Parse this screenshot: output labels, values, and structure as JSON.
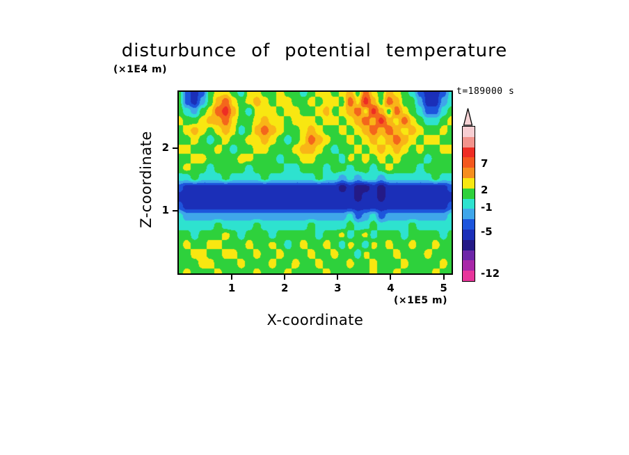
{
  "title": "disturbunce of potential temperature",
  "time_label": "t=189000 s",
  "axes": {
    "x_label": "X-coordinate",
    "x_unit": "(×1E5 m)",
    "y_label": "Z-coordinate",
    "y_unit": "(×1E4 m)"
  },
  "frame_color": "#000000",
  "colorbar": {
    "segments": [
      "#f7ced2",
      "#f2938c",
      "#ee2d24",
      "#f4581e",
      "#f68e1e",
      "#f8e711",
      "#2ed13c",
      "#2ee2cf",
      "#3fa6ea",
      "#1d55dc",
      "#1b2fb8",
      "#241a86",
      "#6d26a8",
      "#a827a8",
      "#e8359b"
    ],
    "arrow_fill": "#f6d3d5",
    "labels": [
      {
        "text": "7",
        "y": 54
      },
      {
        "text": "2",
        "y": 92
      },
      {
        "text": "-1",
        "y": 117
      },
      {
        "text": "-5",
        "y": 152
      },
      {
        "text": "-12",
        "y": 212
      }
    ]
  },
  "chart_data": {
    "type": "heatmap",
    "title": "disturbunce of potential temperature",
    "xlabel": "X-coordinate (×1E5 m)",
    "ylabel": "Z-coordinate (×1E4 m)",
    "time_label": "t=189000 s",
    "x_range": [
      0,
      5.15
    ],
    "y_range": [
      0,
      2.9
    ],
    "x_ticks": [
      1,
      2,
      3,
      4,
      5
    ],
    "y_ticks": [
      1,
      2
    ],
    "levels": [
      -9,
      -7,
      -5,
      -3,
      -1,
      1,
      2.5,
      3.5,
      5,
      7
    ],
    "palette": [
      "#cf1f8e",
      "#241a86",
      "#1b2fb8",
      "#1d55dc",
      "#3fa6ea",
      "#2ee2cf",
      "#2ed13c",
      "#f8e711",
      "#f9b517",
      "#f4661c",
      "#ee2d24"
    ],
    "orientation": "row0_top",
    "grid": [
      [
        2,
        -4,
        -6,
        -4,
        2,
        3,
        3,
        2,
        0,
        3,
        3,
        2,
        2,
        3,
        2,
        2,
        0,
        2,
        3,
        3,
        2,
        3,
        4,
        2,
        6,
        3,
        2,
        4,
        3,
        2,
        0,
        -4,
        -6,
        -6,
        -4,
        0
      ],
      [
        2,
        -4,
        -6,
        -2,
        2,
        4,
        6,
        3,
        2,
        3,
        4,
        3,
        2,
        3,
        3,
        2,
        2,
        3,
        2,
        3,
        3,
        2,
        6,
        3,
        8,
        4,
        2,
        6,
        4,
        2,
        2,
        -2,
        -6,
        -6,
        -2,
        0
      ],
      [
        2,
        0,
        -2,
        2,
        3,
        6,
        8,
        4,
        2,
        0,
        3,
        3,
        3,
        2,
        3,
        3,
        2,
        2,
        3,
        4,
        2,
        3,
        4,
        6,
        3,
        8,
        4,
        2,
        6,
        3,
        2,
        0,
        -4,
        -4,
        0,
        2
      ],
      [
        3,
        2,
        2,
        3,
        4,
        4,
        6,
        3,
        2,
        2,
        3,
        4,
        3,
        3,
        2,
        3,
        3,
        3,
        2,
        3,
        3,
        2,
        3,
        4,
        6,
        4,
        8,
        4,
        3,
        6,
        3,
        2,
        0,
        0,
        2,
        3
      ],
      [
        2,
        3,
        4,
        3,
        2,
        3,
        4,
        3,
        0,
        2,
        4,
        6,
        4,
        3,
        2,
        2,
        3,
        4,
        3,
        2,
        2,
        3,
        2,
        3,
        4,
        6,
        4,
        6,
        4,
        3,
        4,
        3,
        2,
        2,
        3,
        2
      ],
      [
        2,
        2,
        3,
        2,
        0,
        2,
        3,
        2,
        2,
        3,
        3,
        4,
        3,
        2,
        0,
        2,
        3,
        6,
        4,
        3,
        2,
        2,
        3,
        2,
        3,
        4,
        3,
        4,
        6,
        4,
        3,
        2,
        3,
        3,
        2,
        2
      ],
      [
        3,
        3,
        2,
        2,
        2,
        3,
        2,
        0,
        2,
        2,
        3,
        3,
        2,
        2,
        2,
        3,
        4,
        4,
        3,
        2,
        0,
        2,
        2,
        3,
        2,
        3,
        4,
        3,
        4,
        3,
        2,
        3,
        2,
        2,
        3,
        3
      ],
      [
        2,
        2,
        3,
        3,
        2,
        2,
        2,
        2,
        3,
        3,
        2,
        2,
        2,
        0,
        2,
        2,
        3,
        3,
        2,
        2,
        2,
        0,
        3,
        2,
        3,
        2,
        3,
        2,
        3,
        2,
        2,
        2,
        0,
        2,
        2,
        2
      ],
      [
        2,
        3,
        2,
        2,
        0,
        2,
        2,
        2,
        2,
        0,
        2,
        2,
        2,
        2,
        0,
        0,
        2,
        2,
        2,
        0,
        2,
        2,
        0,
        2,
        2,
        0,
        2,
        3,
        2,
        2,
        2,
        0,
        2,
        2,
        2,
        2
      ],
      [
        0,
        0,
        2,
        0,
        0,
        0,
        2,
        0,
        0,
        0,
        0,
        2,
        0,
        0,
        0,
        0,
        0,
        0,
        2,
        0,
        0,
        -2,
        0,
        -2,
        0,
        0,
        -2,
        0,
        0,
        0,
        0,
        0,
        0,
        2,
        0,
        0
      ],
      [
        -4,
        -6,
        -6,
        -6,
        -6,
        -6,
        -6,
        -6,
        -6,
        -6,
        -6,
        -6,
        -6,
        -6,
        -6,
        -6,
        -6,
        -6,
        -6,
        -6,
        -6,
        -8,
        -6,
        -8,
        -8,
        -6,
        -8,
        -6,
        -6,
        -6,
        -6,
        -6,
        -6,
        -6,
        -6,
        -4
      ],
      [
        -6,
        -6,
        -6,
        -6,
        -6,
        -6,
        -6,
        -6,
        -6,
        -6,
        -6,
        -6,
        -6,
        -6,
        -6,
        -6,
        -6,
        -6,
        -6,
        -6,
        -6,
        -6,
        -6,
        -8,
        -6,
        -6,
        -8,
        -6,
        -6,
        -6,
        -6,
        -6,
        -6,
        -6,
        -6,
        -6
      ],
      [
        -4,
        -6,
        -6,
        -6,
        -6,
        -6,
        -6,
        -6,
        -6,
        -6,
        -6,
        -6,
        -6,
        -6,
        -6,
        -6,
        -6,
        -6,
        -6,
        -6,
        -6,
        -6,
        -6,
        -6,
        -6,
        -6,
        -6,
        -6,
        -6,
        -6,
        -6,
        -6,
        -6,
        -6,
        -6,
        -4
      ],
      [
        0,
        -2,
        -2,
        -2,
        -2,
        -2,
        -2,
        -2,
        -2,
        -2,
        -2,
        -2,
        -2,
        -2,
        -2,
        -2,
        -2,
        -2,
        -2,
        -2,
        -2,
        -2,
        0,
        -4,
        -2,
        0,
        -4,
        -2,
        -2,
        -2,
        -2,
        -2,
        -2,
        -2,
        -2,
        0
      ],
      [
        0,
        0,
        0,
        0,
        0,
        2,
        0,
        0,
        0,
        0,
        2,
        0,
        0,
        0,
        0,
        0,
        0,
        2,
        0,
        0,
        0,
        0,
        2,
        0,
        0,
        2,
        0,
        0,
        0,
        0,
        2,
        0,
        0,
        0,
        0,
        0
      ],
      [
        2,
        2,
        0,
        2,
        2,
        2,
        3,
        2,
        0,
        2,
        2,
        2,
        0,
        2,
        2,
        2,
        2,
        2,
        0,
        2,
        2,
        3,
        0,
        2,
        3,
        0,
        2,
        2,
        2,
        0,
        2,
        2,
        2,
        2,
        0,
        2
      ],
      [
        2,
        3,
        2,
        2,
        3,
        3,
        2,
        2,
        2,
        3,
        2,
        2,
        3,
        2,
        0,
        2,
        3,
        2,
        2,
        3,
        2,
        0,
        3,
        2,
        0,
        3,
        2,
        3,
        2,
        2,
        3,
        2,
        2,
        3,
        2,
        2
      ],
      [
        2,
        2,
        3,
        3,
        2,
        2,
        3,
        3,
        2,
        2,
        3,
        2,
        2,
        3,
        2,
        2,
        2,
        3,
        2,
        2,
        3,
        2,
        2,
        0,
        3,
        2,
        2,
        2,
        3,
        2,
        2,
        2,
        3,
        2,
        2,
        2
      ],
      [
        2,
        2,
        2,
        3,
        3,
        2,
        2,
        2,
        3,
        2,
        2,
        2,
        3,
        2,
        2,
        3,
        2,
        2,
        3,
        2,
        2,
        2,
        3,
        2,
        2,
        3,
        2,
        2,
        2,
        3,
        2,
        2,
        2,
        2,
        3,
        2
      ],
      [
        2,
        3,
        2,
        2,
        2,
        3,
        2,
        2,
        2,
        2,
        3,
        2,
        2,
        2,
        3,
        2,
        2,
        2,
        2,
        3,
        2,
        2,
        2,
        2,
        2,
        3,
        2,
        2,
        3,
        2,
        2,
        2,
        2,
        3,
        2,
        2
      ]
    ]
  }
}
